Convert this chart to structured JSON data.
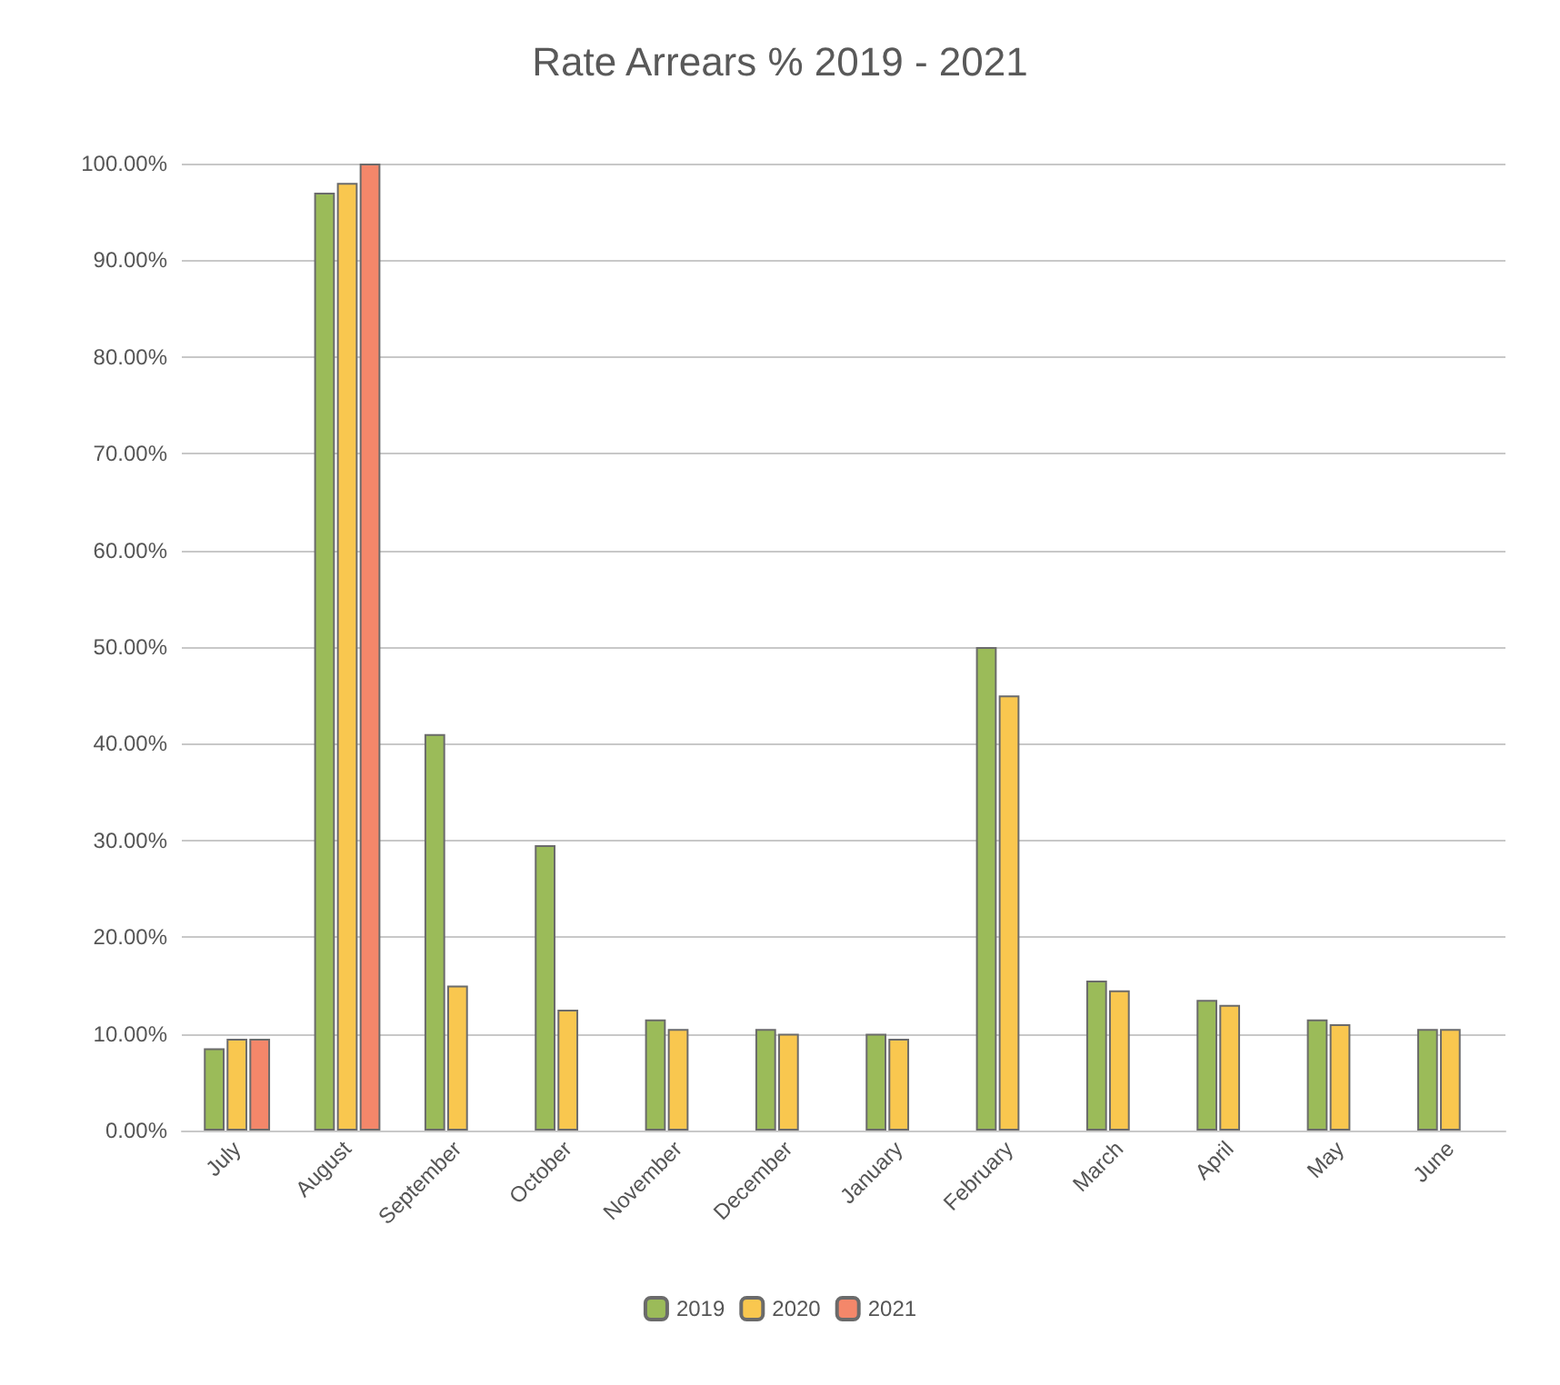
{
  "chart_data": {
    "type": "bar",
    "title": "Rate Arrears % 2019 - 2021",
    "categories": [
      "July",
      "August",
      "September",
      "October",
      "November",
      "December",
      "January",
      "February",
      "March",
      "April",
      "May",
      "June"
    ],
    "series": [
      {
        "name": "2019",
        "color": "#9bbb59",
        "values": [
          8.5,
          97,
          41,
          29.5,
          11.5,
          10.5,
          10,
          50,
          15.5,
          13.5,
          11.5,
          10.5
        ]
      },
      {
        "name": "2020",
        "color": "#f9c74f",
        "values": [
          9.5,
          98,
          15,
          12.5,
          10.5,
          10,
          9.5,
          45,
          14.5,
          13,
          11,
          10.5
        ]
      },
      {
        "name": "2021",
        "color": "#f4876a",
        "values": [
          9.5,
          100,
          null,
          null,
          null,
          null,
          null,
          null,
          null,
          null,
          null,
          null
        ]
      }
    ],
    "ylim": [
      0,
      100
    ],
    "yticks": [
      {
        "value": 0,
        "label": "0.00%"
      },
      {
        "value": 10,
        "label": "10.00%"
      },
      {
        "value": 20,
        "label": "20.00%"
      },
      {
        "value": 30,
        "label": "30.00%"
      },
      {
        "value": 40,
        "label": "40.00%"
      },
      {
        "value": 50,
        "label": "50.00%"
      },
      {
        "value": 60,
        "label": "60.00%"
      },
      {
        "value": 70,
        "label": "70.00%"
      },
      {
        "value": 80,
        "label": "80.00%"
      },
      {
        "value": 90,
        "label": "90.00%"
      },
      {
        "value": 100,
        "label": "100.00%"
      }
    ],
    "grid": "y",
    "legend": "bottom"
  }
}
